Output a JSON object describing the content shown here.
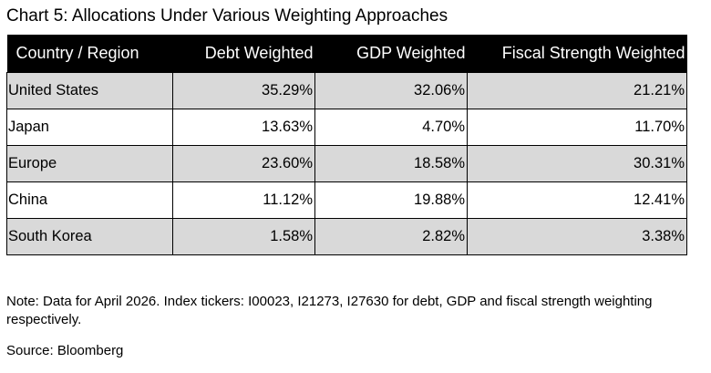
{
  "chart_data": {
    "type": "table",
    "title": "Chart 5: Allocations Under Various Weighting Approaches",
    "columns": [
      "Country / Region",
      "Debt Weighted",
      "GDP Weighted",
      "Fiscal Strength Weighted"
    ],
    "rows": [
      [
        "United States",
        "35.29%",
        "32.06%",
        "21.21%"
      ],
      [
        "Japan",
        "13.63%",
        "4.70%",
        "11.70%"
      ],
      [
        "Europe",
        "23.60%",
        "18.58%",
        "30.31%"
      ],
      [
        "China",
        "11.12%",
        "19.88%",
        "12.41%"
      ],
      [
        "South Korea",
        "1.58%",
        "2.82%",
        "3.38%"
      ]
    ]
  },
  "note": "Note: Data for April 2026. Index tickers: I00023, I21273, I27630 for debt, GDP and fiscal strength weighting respectively.",
  "source": "Source: Bloomberg",
  "colors": {
    "header_background": "#000000",
    "header_text": "#ffffff",
    "shaded_row": "#d9d9d9"
  }
}
